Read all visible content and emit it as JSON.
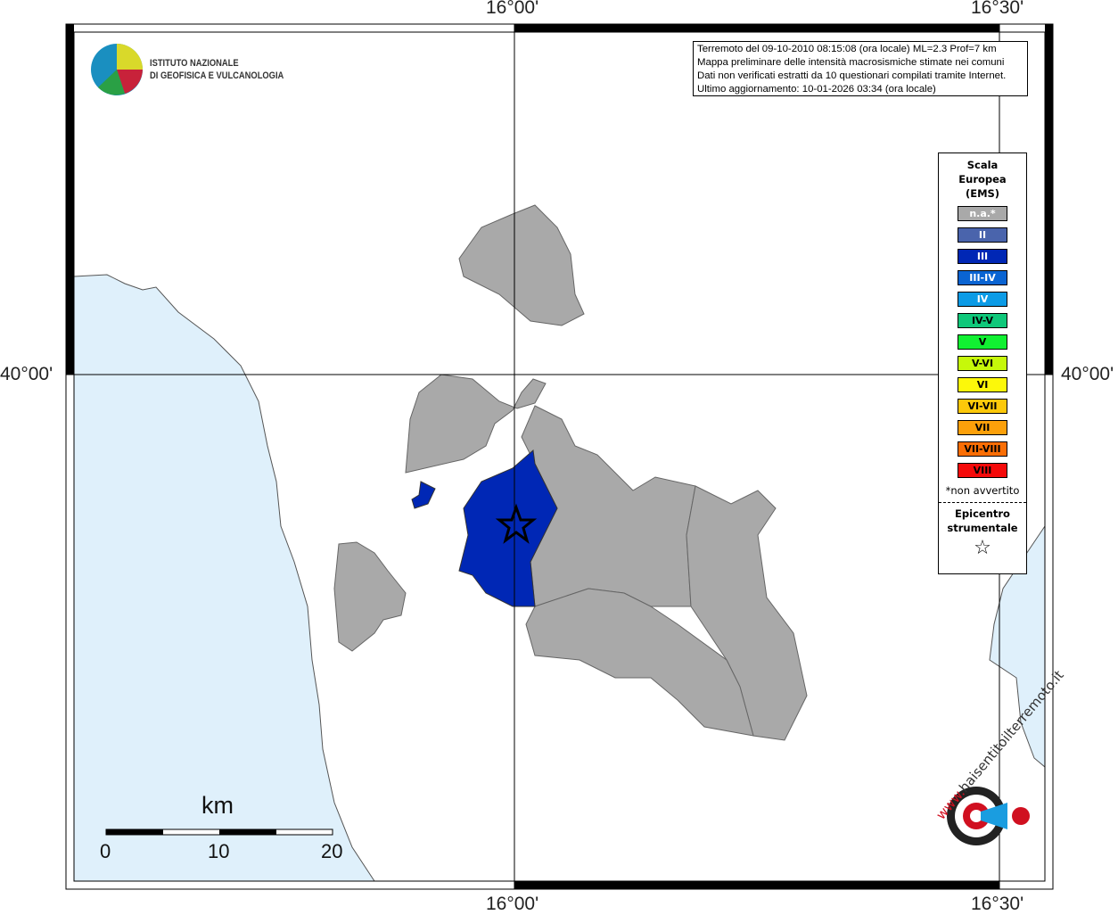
{
  "map": {
    "ticks": {
      "lon": [
        "16°00'",
        "16°30'"
      ],
      "lat": [
        "40°00'"
      ]
    },
    "colors": {
      "sea": "#dff0fb",
      "not_felt": "#a9a9a9",
      "III": "#0027b5"
    },
    "epicenter_icon": "star-icon"
  },
  "logo": {
    "line1": "ISTITUTO NAZIONALE",
    "line2": "DI GEOFISICA E VULCANOLOGIA"
  },
  "info": {
    "lines": [
      "Terremoto del 09-10-2010 08:15:08 (ora locale) ML=2.3 Prof=7 km",
      "Mappa preliminare delle intensità macrosismiche stimate nei comuni",
      "Dati non verificati estratti da 10 questionari compilati tramite Internet.",
      "Ultimo aggiornamento: 10-01-2026 03:34 (ora locale)"
    ]
  },
  "legend": {
    "title": [
      "Scala",
      "Europea",
      "(EMS)"
    ],
    "items": [
      {
        "label": "n.a.*",
        "color": "#a9a9a9",
        "text": "#fff"
      },
      {
        "label": "II",
        "color": "#4a64ac",
        "text": "#fff"
      },
      {
        "label": "III",
        "color": "#0027b5",
        "text": "#fff"
      },
      {
        "label": "III-IV",
        "color": "#0a64d2",
        "text": "#fff"
      },
      {
        "label": "IV",
        "color": "#0c9be6",
        "text": "#fff"
      },
      {
        "label": "IV-V",
        "color": "#0fc87a",
        "text": "#000"
      },
      {
        "label": "V",
        "color": "#11f032",
        "text": "#000"
      },
      {
        "label": "V-VI",
        "color": "#c6f80a",
        "text": "#000"
      },
      {
        "label": "VI",
        "color": "#fcf80a",
        "text": "#000"
      },
      {
        "label": "VI-VII",
        "color": "#fcc80a",
        "text": "#000"
      },
      {
        "label": "VII",
        "color": "#fca00a",
        "text": "#000"
      },
      {
        "label": "VII-VIII",
        "color": "#fa6e05",
        "text": "#000"
      },
      {
        "label": "VIII",
        "color": "#f50a0a",
        "text": "#000"
      }
    ],
    "note": "*non avvertito",
    "epicenter": [
      "Epicentro",
      "strumentale"
    ]
  },
  "scalebar": {
    "unit": "km",
    "labels": [
      "0",
      "10",
      "20"
    ]
  },
  "badge": {
    "text": "haisentitoilterremoto.it",
    "prefix": "www."
  }
}
